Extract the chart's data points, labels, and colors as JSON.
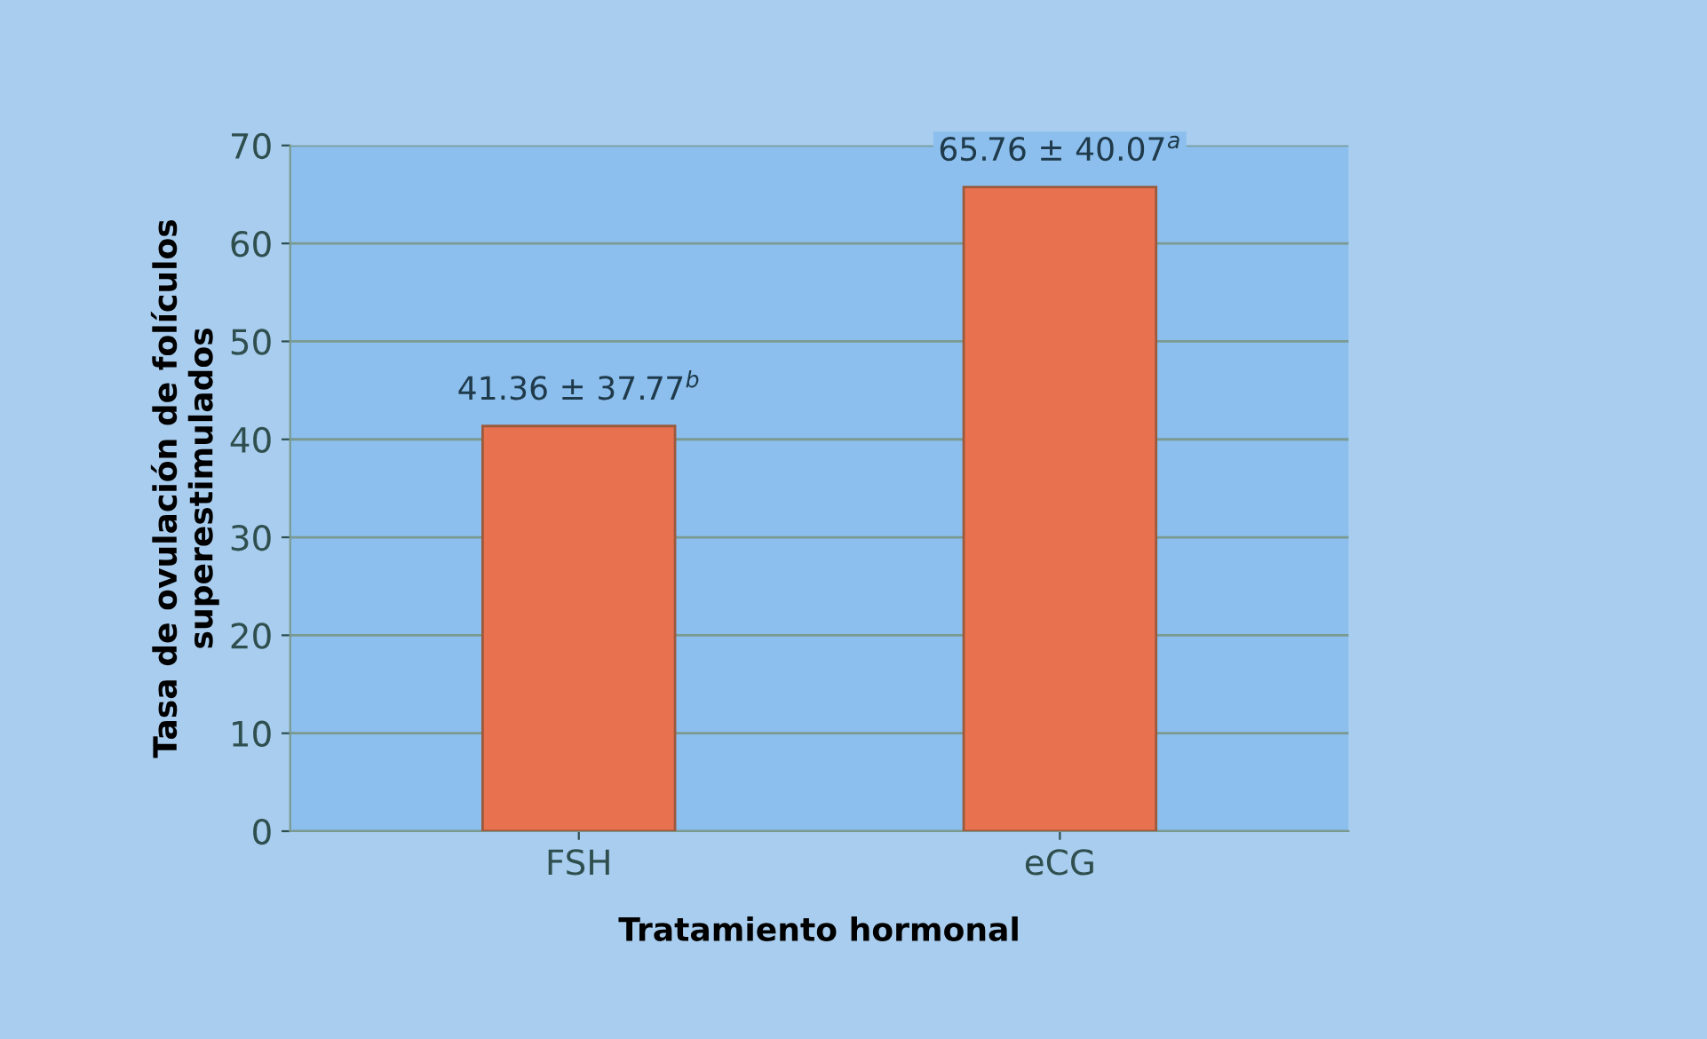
{
  "chart_data": {
    "type": "bar",
    "xlabel": "Tratamiento hormonal",
    "ylabel": "Tasa de ovulación de folículos\nsuperestimulados",
    "categories": [
      "FSH",
      "eCG"
    ],
    "values": [
      41.36,
      65.76
    ],
    "color": "#e8714f",
    "value_labels": [
      "41.36 ± 37.77$^{b}$",
      "65.76 ± 40.07$^{a}$"
    ],
    "ylim": [
      0,
      70
    ],
    "yticks": [
      0,
      10,
      20,
      30,
      40,
      50,
      60,
      70
    ],
    "grid": "y"
  }
}
